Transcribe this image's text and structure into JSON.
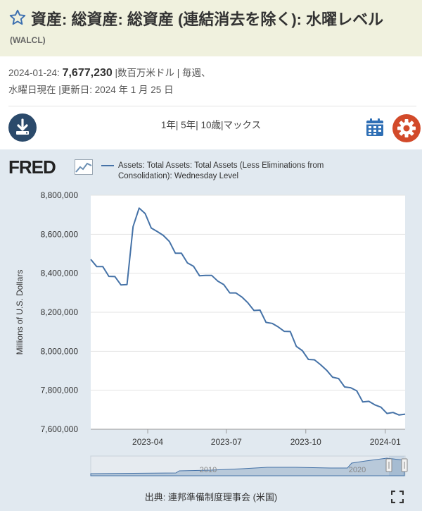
{
  "header": {
    "title": "資産: 総資産: 総資産 (連結消去を除く): 水曜レベル",
    "series_id": "(WALCL)"
  },
  "meta": {
    "date": "2024-01-24:",
    "value": "7,677,230",
    "units_freq": "|数百万米ドル | 毎週、",
    "line2": "水曜日現在 |更新日: 2024 年 1 月 25 日"
  },
  "toolbar": {
    "ranges": [
      "1年",
      "5年",
      "10歳",
      "マックス"
    ]
  },
  "chart_data": {
    "type": "line",
    "title": "",
    "legend_label": "Assets: Total Assets: Total Assets (Less Eliminations from Consolidation): Wednesday Level",
    "logo": "FRED",
    "ylabel": "Millions of U.S. Dollars",
    "xlabel": "",
    "ylim": [
      7600000,
      8800000
    ],
    "xlim": [
      "2023-01-25",
      "2024-01-24"
    ],
    "y_ticks": [
      7600000,
      7800000,
      8000000,
      8200000,
      8400000,
      8600000,
      8800000
    ],
    "y_tick_labels": [
      "7,600,000",
      "7,800,000",
      "8,000,000",
      "8,200,000",
      "8,400,000",
      "8,600,000",
      "8,800,000"
    ],
    "x_ticks": [
      "2023-04-01",
      "2023-07-01",
      "2023-10-01",
      "2024-01-01"
    ],
    "x_tick_labels": [
      "2023-04",
      "2023-07",
      "2023-10",
      "2024-01"
    ],
    "grid": "horizontal",
    "legend_placement": "top",
    "color": "#4572a7",
    "series": [
      {
        "x": [
          "2023-01-25",
          "2023-02-01",
          "2023-02-08",
          "2023-02-15",
          "2023-02-22",
          "2023-03-01",
          "2023-03-08",
          "2023-03-15",
          "2023-03-22",
          "2023-03-29",
          "2023-04-05",
          "2023-04-12",
          "2023-04-19",
          "2023-04-26",
          "2023-05-03",
          "2023-05-10",
          "2023-05-17",
          "2023-05-24",
          "2023-05-31",
          "2023-06-07",
          "2023-06-14",
          "2023-06-21",
          "2023-06-28",
          "2023-07-05",
          "2023-07-12",
          "2023-07-19",
          "2023-07-26",
          "2023-08-02",
          "2023-08-09",
          "2023-08-16",
          "2023-08-23",
          "2023-08-30",
          "2023-09-06",
          "2023-09-13",
          "2023-09-20",
          "2023-09-27",
          "2023-10-04",
          "2023-10-11",
          "2023-10-18",
          "2023-10-25",
          "2023-11-01",
          "2023-11-08",
          "2023-11-15",
          "2023-11-22",
          "2023-11-29",
          "2023-12-06",
          "2023-12-13",
          "2023-12-20",
          "2023-12-27",
          "2024-01-03",
          "2024-01-10",
          "2024-01-17",
          "2024-01-24"
        ],
        "values": [
          8471000,
          8434000,
          8434000,
          8384000,
          8383000,
          8340000,
          8342000,
          8639000,
          8734000,
          8706000,
          8632000,
          8614000,
          8594000,
          8563000,
          8503000,
          8503000,
          8453000,
          8436000,
          8387000,
          8389000,
          8389000,
          8360000,
          8342000,
          8299000,
          8299000,
          8278000,
          8248000,
          8209000,
          8211000,
          8148000,
          8143000,
          8125000,
          8102000,
          8101000,
          8025000,
          8003000,
          7958000,
          7956000,
          7931000,
          7903000,
          7867000,
          7860000,
          7817000,
          7813000,
          7797000,
          7740000,
          7743000,
          7725000,
          7713000,
          7681000,
          7686000,
          7673000,
          7677230
        ]
      }
    ]
  },
  "navigator": {
    "labels": [
      "2010",
      "2020"
    ]
  },
  "footer": {
    "source": "出典: 連邦準備制度理事会 (米国)"
  }
}
